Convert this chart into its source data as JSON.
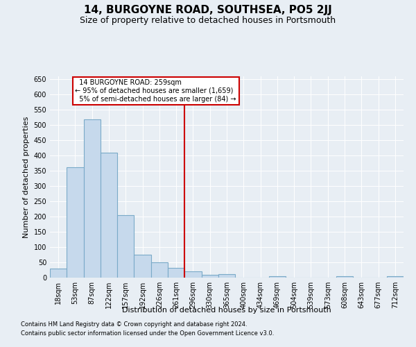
{
  "title": "14, BURGOYNE ROAD, SOUTHSEA, PO5 2JJ",
  "subtitle": "Size of property relative to detached houses in Portsmouth",
  "xlabel": "Distribution of detached houses by size in Portsmouth",
  "ylabel": "Number of detached properties",
  "bar_labels": [
    "18sqm",
    "53sqm",
    "87sqm",
    "122sqm",
    "157sqm",
    "192sqm",
    "226sqm",
    "261sqm",
    "296sqm",
    "330sqm",
    "365sqm",
    "400sqm",
    "434sqm",
    "469sqm",
    "504sqm",
    "539sqm",
    "573sqm",
    "608sqm",
    "643sqm",
    "677sqm",
    "712sqm"
  ],
  "bar_values": [
    30,
    362,
    520,
    410,
    205,
    75,
    50,
    32,
    20,
    10,
    12,
    0,
    0,
    5,
    0,
    0,
    0,
    5,
    0,
    0,
    5
  ],
  "bar_color": "#c6d9ec",
  "bar_edge_color": "#7aaac8",
  "vline_x": 7.5,
  "vline_color": "#cc0000",
  "annotation_text": "  14 BURGOYNE ROAD: 259sqm  \n← 95% of detached houses are smaller (1,659)\n  5% of semi-detached houses are larger (84) →",
  "annotation_box_color": "#ffffff",
  "annotation_box_edge_color": "#cc0000",
  "ylim": [
    0,
    660
  ],
  "yticks": [
    0,
    50,
    100,
    150,
    200,
    250,
    300,
    350,
    400,
    450,
    500,
    550,
    600,
    650
  ],
  "background_color": "#e8eef4",
  "footer_line1": "Contains HM Land Registry data © Crown copyright and database right 2024.",
  "footer_line2": "Contains public sector information licensed under the Open Government Licence v3.0.",
  "title_fontsize": 11,
  "subtitle_fontsize": 9,
  "label_fontsize": 8,
  "tick_fontsize": 7,
  "footer_fontsize": 6
}
